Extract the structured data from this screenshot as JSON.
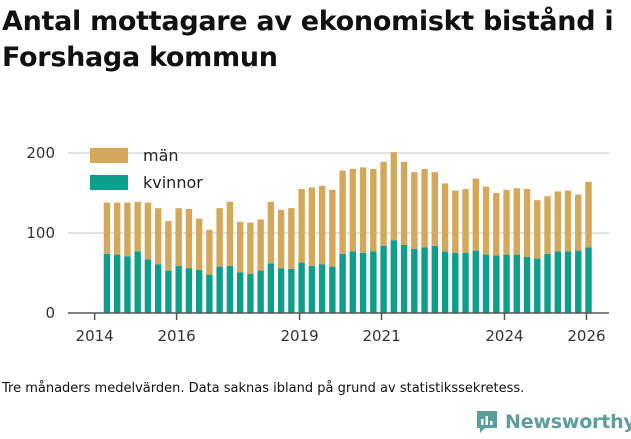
{
  "title": "Antal mottagare av ekonomiskt bistånd i Forshaga kommun",
  "footnote": "Tre månaders medelvärden. Data saknas ibland på grund av statistikssekretess.",
  "brand": "Newsworthy",
  "colors": {
    "man": "#d4a85a",
    "kvinnor": "#0e9e8e",
    "grid": "#d9d9d9",
    "axis": "#555555",
    "brand": "#5b9e9a"
  },
  "chart_data": {
    "type": "bar",
    "stacked": true,
    "ylim": [
      0,
      200
    ],
    "yticks": [
      0,
      100,
      200
    ],
    "xrange": [
      2013.35,
      2026.55
    ],
    "xticks": [
      2014,
      2016,
      2019,
      2021,
      2024,
      2026
    ],
    "legend": [
      "män",
      "kvinnor"
    ],
    "legend_position": "top-left",
    "x": [
      2014.3,
      2014.55,
      2014.8,
      2015.05,
      2015.3,
      2015.55,
      2015.8,
      2016.05,
      2016.3,
      2016.55,
      2016.8,
      2017.05,
      2017.3,
      2017.55,
      2017.8,
      2018.05,
      2018.3,
      2018.55,
      2018.8,
      2019.05,
      2019.3,
      2019.55,
      2019.8,
      2020.05,
      2020.3,
      2020.55,
      2020.8,
      2021.05,
      2021.3,
      2021.55,
      2021.8,
      2022.05,
      2022.3,
      2022.55,
      2022.8,
      2023.05,
      2023.3,
      2023.55,
      2023.8,
      2024.05,
      2024.3,
      2024.55,
      2024.8,
      2025.05,
      2025.3,
      2025.55,
      2025.8,
      2026.05
    ],
    "series": [
      {
        "name": "kvinnor",
        "values": [
          74,
          73,
          71,
          77,
          67,
          61,
          53,
          59,
          56,
          54,
          48,
          58,
          59,
          51,
          49,
          53,
          62,
          56,
          55,
          63,
          59,
          61,
          58,
          74,
          77,
          75,
          77,
          84,
          91,
          85,
          80,
          82,
          84,
          77,
          75,
          75,
          78,
          73,
          72,
          73,
          73,
          70,
          68,
          74,
          77,
          77,
          78,
          82
        ]
      },
      {
        "name": "män",
        "values": [
          64,
          65,
          67,
          62,
          71,
          70,
          62,
          72,
          74,
          64,
          56,
          73,
          80,
          63,
          64,
          64,
          77,
          73,
          76,
          92,
          98,
          98,
          96,
          104,
          103,
          107,
          103,
          105,
          110,
          104,
          96,
          98,
          92,
          85,
          78,
          80,
          90,
          85,
          78,
          81,
          83,
          85,
          73,
          72,
          75,
          76,
          70,
          82
        ]
      }
    ]
  }
}
